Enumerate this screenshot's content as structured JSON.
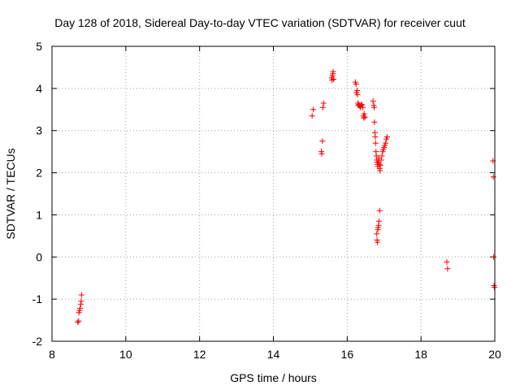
{
  "chart_data": {
    "type": "scatter",
    "title": "Day 128 of 2018, Sidereal Day-to-day VTEC variation (SDTVAR) for receiver cuut",
    "xlabel": "GPS time / hours",
    "ylabel": "SDTVAR / TECUs",
    "xlim": [
      8,
      20
    ],
    "ylim": [
      -2,
      5
    ],
    "xticks": [
      8,
      10,
      12,
      14,
      16,
      18,
      20
    ],
    "yticks": [
      -2,
      -1,
      0,
      1,
      2,
      3,
      4,
      5
    ],
    "grid": true,
    "marker": "+",
    "color": "#ff0000",
    "series": [
      {
        "name": "SDTVAR",
        "points": [
          [
            8.7,
            -1.55
          ],
          [
            8.72,
            -1.52
          ],
          [
            8.73,
            -1.32
          ],
          [
            8.75,
            -1.27
          ],
          [
            8.76,
            -1.22
          ],
          [
            8.78,
            -1.12
          ],
          [
            8.79,
            -1.05
          ],
          [
            8.8,
            -0.9
          ],
          [
            15.05,
            3.35
          ],
          [
            15.08,
            3.5
          ],
          [
            15.3,
            2.5
          ],
          [
            15.31,
            2.45
          ],
          [
            15.33,
            2.75
          ],
          [
            15.34,
            3.55
          ],
          [
            15.36,
            3.65
          ],
          [
            15.58,
            4.25
          ],
          [
            15.59,
            4.2
          ],
          [
            15.6,
            4.3
          ],
          [
            15.61,
            4.35
          ],
          [
            15.62,
            4.4
          ],
          [
            15.63,
            4.22
          ],
          [
            16.22,
            4.15
          ],
          [
            16.24,
            4.1
          ],
          [
            16.25,
            3.9
          ],
          [
            16.27,
            3.95
          ],
          [
            16.28,
            3.85
          ],
          [
            16.29,
            3.65
          ],
          [
            16.3,
            3.6
          ],
          [
            16.32,
            3.62
          ],
          [
            16.34,
            3.58
          ],
          [
            16.36,
            3.55
          ],
          [
            16.38,
            3.6
          ],
          [
            16.4,
            3.62
          ],
          [
            16.42,
            3.55
          ],
          [
            16.44,
            3.35
          ],
          [
            16.45,
            3.3
          ],
          [
            16.46,
            3.4
          ],
          [
            16.48,
            3.32
          ],
          [
            16.7,
            3.7
          ],
          [
            16.72,
            3.6
          ],
          [
            16.73,
            3.55
          ],
          [
            16.74,
            3.2
          ],
          [
            16.75,
            2.95
          ],
          [
            16.76,
            2.85
          ],
          [
            16.77,
            2.7
          ],
          [
            16.78,
            2.5
          ],
          [
            16.79,
            2.4
          ],
          [
            16.8,
            2.3
          ],
          [
            16.81,
            2.25
          ],
          [
            16.82,
            2.2
          ],
          [
            16.83,
            2.15
          ],
          [
            16.84,
            2.25
          ],
          [
            16.85,
            2.35
          ],
          [
            16.86,
            2.3
          ],
          [
            16.87,
            2.2
          ],
          [
            16.88,
            2.1
          ],
          [
            16.89,
            2.05
          ],
          [
            16.9,
            2.18
          ],
          [
            16.92,
            2.3
          ],
          [
            16.94,
            2.4
          ],
          [
            16.96,
            2.5
          ],
          [
            16.98,
            2.55
          ],
          [
            17.0,
            2.6
          ],
          [
            17.02,
            2.65
          ],
          [
            17.04,
            2.7
          ],
          [
            17.06,
            2.8
          ],
          [
            17.08,
            2.85
          ],
          [
            16.8,
            0.55
          ],
          [
            16.81,
            0.4
          ],
          [
            16.82,
            0.35
          ],
          [
            16.83,
            0.65
          ],
          [
            16.84,
            0.7
          ],
          [
            16.85,
            0.75
          ],
          [
            16.86,
            0.85
          ],
          [
            16.88,
            1.1
          ],
          [
            18.7,
            -0.12
          ],
          [
            18.72,
            -0.28
          ],
          [
            19.95,
            2.28
          ],
          [
            19.96,
            1.9
          ],
          [
            19.97,
            0.0
          ],
          [
            19.98,
            -0.68
          ],
          [
            19.99,
            -0.72
          ]
        ]
      }
    ]
  }
}
